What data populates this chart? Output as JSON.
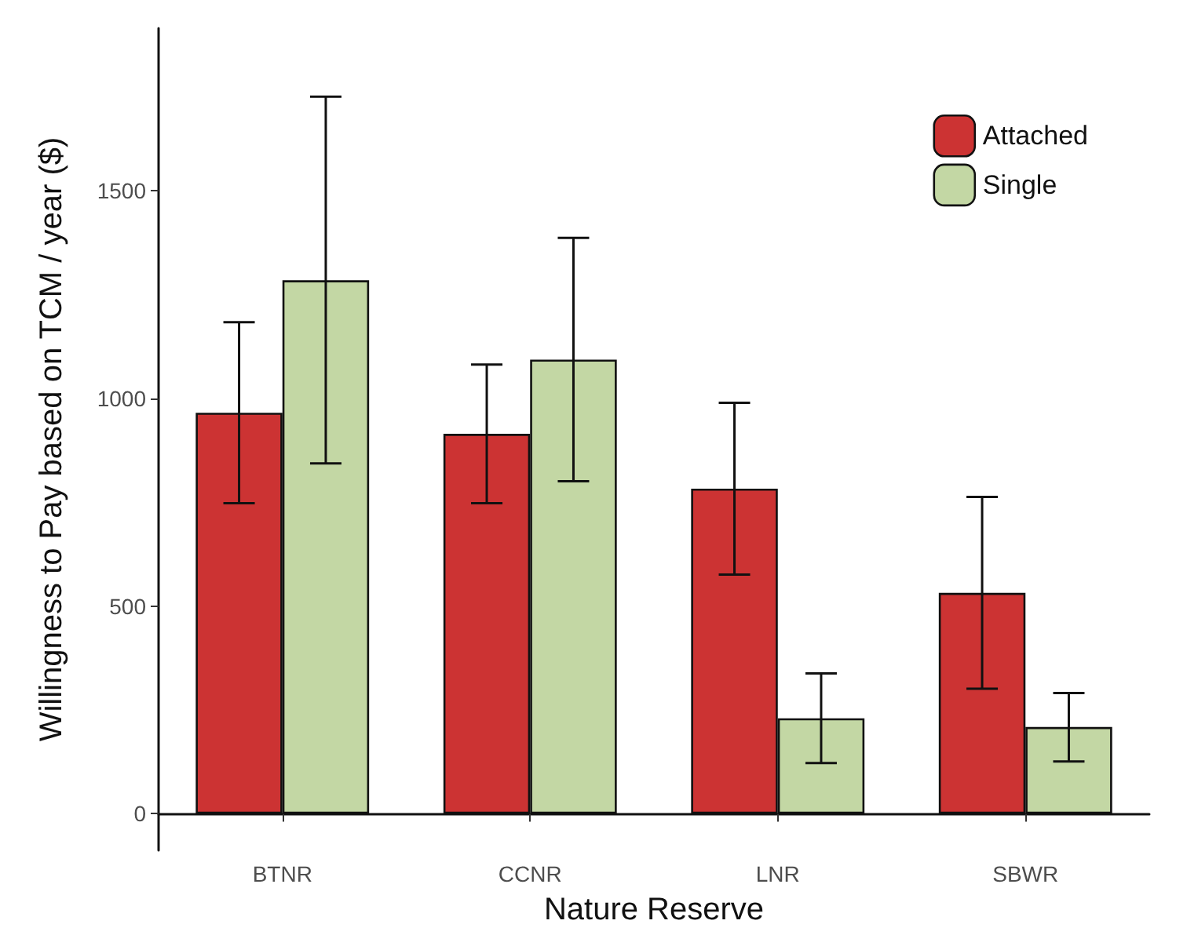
{
  "chart_data": {
    "type": "bar",
    "xlabel": "Nature Reserve",
    "ylabel": "Willingness to Pay based on TCM / year ($)",
    "categories": [
      "BTNR",
      "CCNR",
      "LNR",
      "SBWR"
    ],
    "series": [
      {
        "name": "Attached",
        "color": "#cc3333",
        "values": [
          966,
          915,
          783,
          532
        ],
        "errors": [
          [
            748,
            1184
          ],
          [
            748,
            1082
          ],
          [
            576,
            990
          ],
          [
            301,
            763
          ]
        ]
      },
      {
        "name": "Single",
        "color": "#c3d7a4",
        "values": [
          1285,
          1094,
          230,
          209
        ],
        "errors": [
          [
            844,
            1727
          ],
          [
            801,
            1387
          ],
          [
            122,
            338
          ],
          [
            126,
            291
          ]
        ]
      }
    ],
    "ylim": [
      -88,
      1892
    ],
    "yticks": [
      0,
      500,
      1000,
      1500
    ],
    "grid": false,
    "legend": "top right"
  }
}
